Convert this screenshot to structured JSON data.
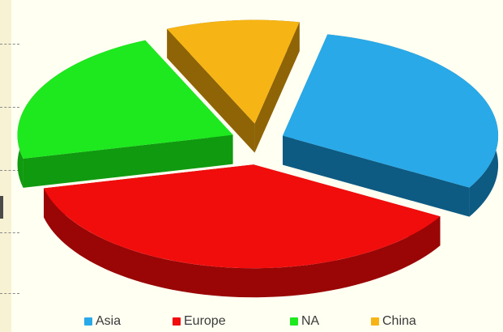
{
  "chart_data": {
    "type": "pie",
    "style": "3d-exploded",
    "legend_position": "bottom",
    "slices": [
      {
        "label": "Asia",
        "value": 30,
        "color": "#29a9e8",
        "side_color": "#0d5a82"
      },
      {
        "label": "Europe",
        "value": 38,
        "color": "#f20d0d",
        "side_color": "#9a0606"
      },
      {
        "label": "NA",
        "value": 22,
        "color": "#1ee81e",
        "side_color": "#0f9a0f"
      },
      {
        "label": "China",
        "value": 10,
        "color": "#f7b515",
        "side_color": "#8f6406"
      }
    ]
  }
}
